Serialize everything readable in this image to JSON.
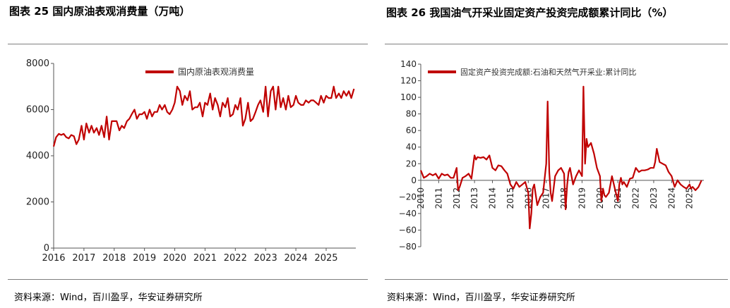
{
  "left_panel": {
    "title": "图表 25 国内原油表观消费量（万吨）",
    "source": "资料来源：Wind，百川盈孚，华安证券研究所"
  },
  "right_panel": {
    "title": "图表 26 我国油气开采业固定资产投资完成额累计同比（%）",
    "source": "资料来源：Wind，百川盈孚，华安证券研究所"
  },
  "chart_data": [
    {
      "type": "line",
      "title": "",
      "xlabel": "",
      "ylabel": "",
      "ylim": [
        0,
        8000
      ],
      "yticks": [
        "0",
        "2000",
        "4000",
        "6000",
        "8000"
      ],
      "xticks": [
        "2016",
        "2017",
        "2018",
        "2019",
        "2020",
        "2021",
        "2022",
        "2023",
        "2024",
        "2025"
      ],
      "grid": false,
      "legend_position": "top",
      "color": "#c00000",
      "series": [
        {
          "name": "国内原油表观消费量",
          "x": [
            2016.0,
            2016.08,
            2016.17,
            2016.25,
            2016.33,
            2016.42,
            2016.5,
            2016.58,
            2016.67,
            2016.75,
            2016.83,
            2016.92,
            2017.0,
            2017.08,
            2017.17,
            2017.25,
            2017.33,
            2017.42,
            2017.5,
            2017.58,
            2017.67,
            2017.75,
            2017.83,
            2017.92,
            2018.0,
            2018.08,
            2018.17,
            2018.25,
            2018.33,
            2018.42,
            2018.5,
            2018.58,
            2018.67,
            2018.75,
            2018.83,
            2018.92,
            2019.0,
            2019.08,
            2019.17,
            2019.25,
            2019.33,
            2019.42,
            2019.5,
            2019.58,
            2019.67,
            2019.75,
            2019.83,
            2019.92,
            2020.0,
            2020.08,
            2020.17,
            2020.25,
            2020.33,
            2020.42,
            2020.5,
            2020.58,
            2020.67,
            2020.75,
            2020.83,
            2020.92,
            2021.0,
            2021.08,
            2021.17,
            2021.25,
            2021.33,
            2021.42,
            2021.5,
            2021.58,
            2021.67,
            2021.75,
            2021.83,
            2021.92,
            2022.0,
            2022.08,
            2022.17,
            2022.25,
            2022.33,
            2022.42,
            2022.5,
            2022.58,
            2022.67,
            2022.75,
            2022.83,
            2022.92,
            2023.0,
            2023.08,
            2023.17,
            2023.25,
            2023.33,
            2023.42,
            2023.5,
            2023.58,
            2023.67,
            2023.75,
            2023.83,
            2023.92,
            2024.0,
            2024.08,
            2024.17,
            2024.25,
            2024.33,
            2024.42,
            2024.5,
            2024.58,
            2024.67,
            2024.75,
            2024.83,
            2024.92,
            2025.0,
            2025.08,
            2025.17,
            2025.25,
            2025.33,
            2025.42,
            2025.5,
            2025.58,
            2025.67,
            2025.75,
            2025.83,
            2025.92
          ],
          "values": [
            4400,
            4800,
            4950,
            4900,
            4950,
            4800,
            4750,
            4900,
            4850,
            4500,
            4700,
            5300,
            4700,
            5400,
            5000,
            5300,
            5000,
            5200,
            4900,
            5300,
            4800,
            5700,
            4700,
            5500,
            5500,
            5500,
            5100,
            5300,
            5200,
            5500,
            5600,
            5800,
            6000,
            5600,
            5800,
            5800,
            5900,
            5600,
            6000,
            5700,
            5900,
            5900,
            6200,
            6000,
            6200,
            5900,
            5800,
            6000,
            6300,
            7000,
            6800,
            6200,
            6600,
            6400,
            6800,
            6000,
            6100,
            6100,
            6300,
            5700,
            6300,
            6200,
            6700,
            6000,
            6500,
            6200,
            5700,
            6300,
            6100,
            6500,
            5700,
            5800,
            6200,
            6000,
            6500,
            5300,
            5600,
            6300,
            5500,
            5600,
            5900,
            6200,
            6400,
            5900,
            7000,
            5700,
            6800,
            7000,
            6000,
            7000,
            6100,
            6500,
            6000,
            6600,
            6100,
            6200,
            6600,
            6300,
            6200,
            6200,
            6400,
            6300,
            6400,
            6400,
            6300,
            6200,
            6600,
            6300,
            6600,
            6500,
            6500,
            7000,
            6500,
            6700,
            6500,
            6800,
            6600,
            6800,
            6500,
            6900
          ]
        }
      ]
    },
    {
      "type": "line",
      "title": "",
      "xlabel": "",
      "ylabel": "",
      "ylim": [
        -80,
        140
      ],
      "yticks": [
        "−80",
        "−60",
        "−40",
        "−20",
        "0",
        "20",
        "40",
        "60",
        "80",
        "100",
        "120",
        "140"
      ],
      "xticks": [
        "2010",
        "2011",
        "2012",
        "2013",
        "2014",
        "2015",
        "2016",
        "2017",
        "2018",
        "2019",
        "2020",
        "2021",
        "2022",
        "2023",
        "2024",
        "2025"
      ],
      "grid": false,
      "legend_position": "top",
      "color": "#c00000",
      "series": [
        {
          "name": "固定资产投资完成额:石油和天然气开采业:累计同比",
          "x": [
            2010.0,
            2010.17,
            2010.33,
            2010.5,
            2010.67,
            2010.83,
            2011.0,
            2011.17,
            2011.33,
            2011.5,
            2011.67,
            2011.83,
            2012.0,
            2012.08,
            2012.17,
            2012.33,
            2012.5,
            2012.67,
            2012.83,
            2013.0,
            2013.08,
            2013.17,
            2013.33,
            2013.5,
            2013.67,
            2013.83,
            2014.0,
            2014.17,
            2014.33,
            2014.5,
            2014.67,
            2014.83,
            2015.0,
            2015.17,
            2015.33,
            2015.5,
            2015.67,
            2015.83,
            2016.0,
            2016.08,
            2016.17,
            2016.25,
            2016.33,
            2016.5,
            2016.67,
            2016.83,
            2017.0,
            2017.08,
            2017.17,
            2017.25,
            2017.33,
            2017.5,
            2017.67,
            2017.83,
            2018.0,
            2018.08,
            2018.17,
            2018.25,
            2018.33,
            2018.5,
            2018.67,
            2018.83,
            2019.0,
            2019.08,
            2019.17,
            2019.25,
            2019.33,
            2019.5,
            2019.67,
            2019.83,
            2020.0,
            2020.08,
            2020.17,
            2020.25,
            2020.33,
            2020.5,
            2020.67,
            2020.83,
            2021.0,
            2021.08,
            2021.17,
            2021.25,
            2021.33,
            2021.5,
            2021.67,
            2021.83,
            2022.0,
            2022.17,
            2022.33,
            2022.5,
            2022.67,
            2022.83,
            2023.0,
            2023.08,
            2023.17,
            2023.33,
            2023.5,
            2023.67,
            2023.83,
            2024.0,
            2024.17,
            2024.33,
            2024.5,
            2024.67,
            2024.83,
            2025.0,
            2025.08,
            2025.17,
            2025.33,
            2025.5,
            2025.67
          ],
          "values": [
            12,
            3,
            5,
            8,
            6,
            8,
            2,
            8,
            6,
            7,
            3,
            3,
            15,
            -12,
            -8,
            3,
            5,
            8,
            2,
            30,
            25,
            28,
            27,
            28,
            25,
            30,
            15,
            12,
            18,
            17,
            12,
            8,
            -5,
            -10,
            -2,
            -8,
            -5,
            -2,
            -15,
            -58,
            -40,
            -10,
            -5,
            -30,
            -20,
            -15,
            20,
            95,
            10,
            -15,
            -25,
            5,
            12,
            15,
            8,
            -35,
            -5,
            10,
            15,
            -5,
            5,
            12,
            5,
            113,
            20,
            50,
            40,
            45,
            32,
            15,
            5,
            -25,
            -10,
            -18,
            -20,
            -15,
            5,
            -10,
            -25,
            -5,
            3,
            -5,
            -2,
            -8,
            2,
            3,
            15,
            10,
            12,
            12,
            13,
            15,
            15,
            22,
            38,
            22,
            20,
            18,
            10,
            5,
            -8,
            0,
            -5,
            -8,
            -10,
            -5,
            -10,
            -8,
            -12,
            -8,
            0
          ]
        }
      ]
    }
  ]
}
